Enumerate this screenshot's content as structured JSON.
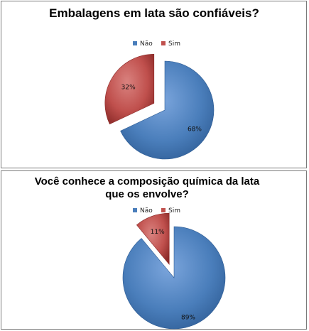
{
  "colors": {
    "nao": "#4a7ebb",
    "nao_dark": "#2e5c94",
    "nao_light": "#7ba5dc",
    "sim": "#c0504d",
    "sim_dark": "#8c2b29",
    "sim_light": "#d9827f"
  },
  "chart_data": [
    {
      "type": "pie",
      "title": "Embalagens em lata são confiáveis?",
      "legend": [
        "Não",
        "Sim"
      ],
      "legend_position": "top",
      "slices": [
        {
          "label": "Não",
          "value": 68,
          "value_label": "68%"
        },
        {
          "label": "Sim",
          "value": 32,
          "value_label": "32%",
          "exploded": true
        }
      ]
    },
    {
      "type": "pie",
      "title_lines": [
        "Você conhece a composição química da lata",
        "que os envolve?"
      ],
      "legend": [
        "Não",
        "Sim"
      ],
      "legend_position": "top",
      "slices": [
        {
          "label": "Não",
          "value": 89,
          "value_label": "89%"
        },
        {
          "label": "Sim",
          "value": 11,
          "value_label": "11%",
          "exploded": true
        }
      ]
    }
  ]
}
